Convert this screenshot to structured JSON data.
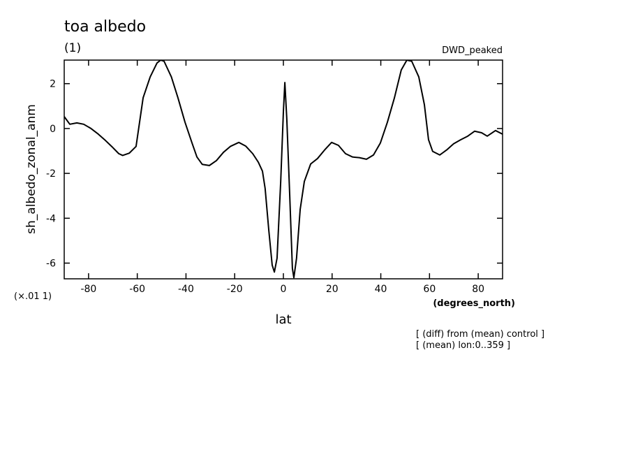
{
  "chart_data": {
    "type": "line",
    "title": "toa albedo",
    "subtitle": "(1)",
    "dataset_label": "DWD_peaked",
    "ylabel": "sh_albedo_zonal_anm",
    "y_scale_note": "(×.01 1)",
    "x_units": "(degrees_north)",
    "xlabel": "lat",
    "annotations": [
      "[ (diff) from (mean) control ]",
      "[ (mean) lon:0..359 ]"
    ],
    "color": "#000000",
    "x": [
      -90,
      -87.7,
      -84.8,
      -82,
      -79,
      -76,
      -73.4,
      -70.5,
      -67.6,
      -66,
      -63.3,
      -60.5,
      -57.6,
      -54.7,
      -51.9,
      -50.4,
      -49,
      -46,
      -43.3,
      -40.4,
      -37.5,
      -35.5,
      -33.3,
      -30.4,
      -27.5,
      -24.6,
      -21.8,
      -18.3,
      -15.5,
      -12.6,
      -10.3,
      -8.6,
      -7.5,
      -6,
      -4.6,
      -3.7,
      -2.6,
      -1.1,
      0,
      0.6,
      1.4,
      2.6,
      3.7,
      4.3,
      5.4,
      6.9,
      8.6,
      11.2,
      14,
      16.9,
      19.8,
      22.6,
      25.5,
      28.4,
      31.2,
      34.1,
      37,
      39.8,
      42.7,
      45.6,
      48.4,
      50.7,
      52.7,
      55.6,
      57.9,
      59.6,
      61.3,
      64.2,
      67,
      69.9,
      72.8,
      75.7,
      78.5,
      81.4,
      83.7,
      87.1,
      90
    ],
    "values": [
      0.53,
      0.19,
      0.25,
      0.19,
      0,
      -0.25,
      -0.5,
      -0.8,
      -1.12,
      -1.2,
      -1.1,
      -0.8,
      1.37,
      2.3,
      2.92,
      3.05,
      3.0,
      2.3,
      1.37,
      0.28,
      -0.65,
      -1.27,
      -1.6,
      -1.65,
      -1.43,
      -1.06,
      -0.8,
      -0.62,
      -0.78,
      -1.12,
      -1.5,
      -1.9,
      -2.67,
      -4.53,
      -6.09,
      -6.4,
      -5.78,
      -2.36,
      0.75,
      2.05,
      0.43,
      -2.98,
      -6.24,
      -6.65,
      -5.78,
      -3.6,
      -2.36,
      -1.58,
      -1.34,
      -0.96,
      -0.62,
      -0.75,
      -1.12,
      -1.27,
      -1.3,
      -1.37,
      -1.18,
      -0.65,
      0.28,
      1.37,
      2.61,
      3.05,
      3.0,
      2.3,
      1.06,
      -0.5,
      -1.02,
      -1.18,
      -0.96,
      -0.68,
      -0.5,
      -0.34,
      -0.12,
      -0.19,
      -0.34,
      -0.09,
      -0.25
    ],
    "xlim": [
      -90,
      90
    ],
    "ylim": [
      -6.7,
      3.05
    ],
    "xticks": [
      -80,
      -60,
      -40,
      -20,
      0,
      20,
      40,
      60,
      80
    ],
    "yticks": [
      -6,
      -4,
      -2,
      0,
      2
    ]
  }
}
